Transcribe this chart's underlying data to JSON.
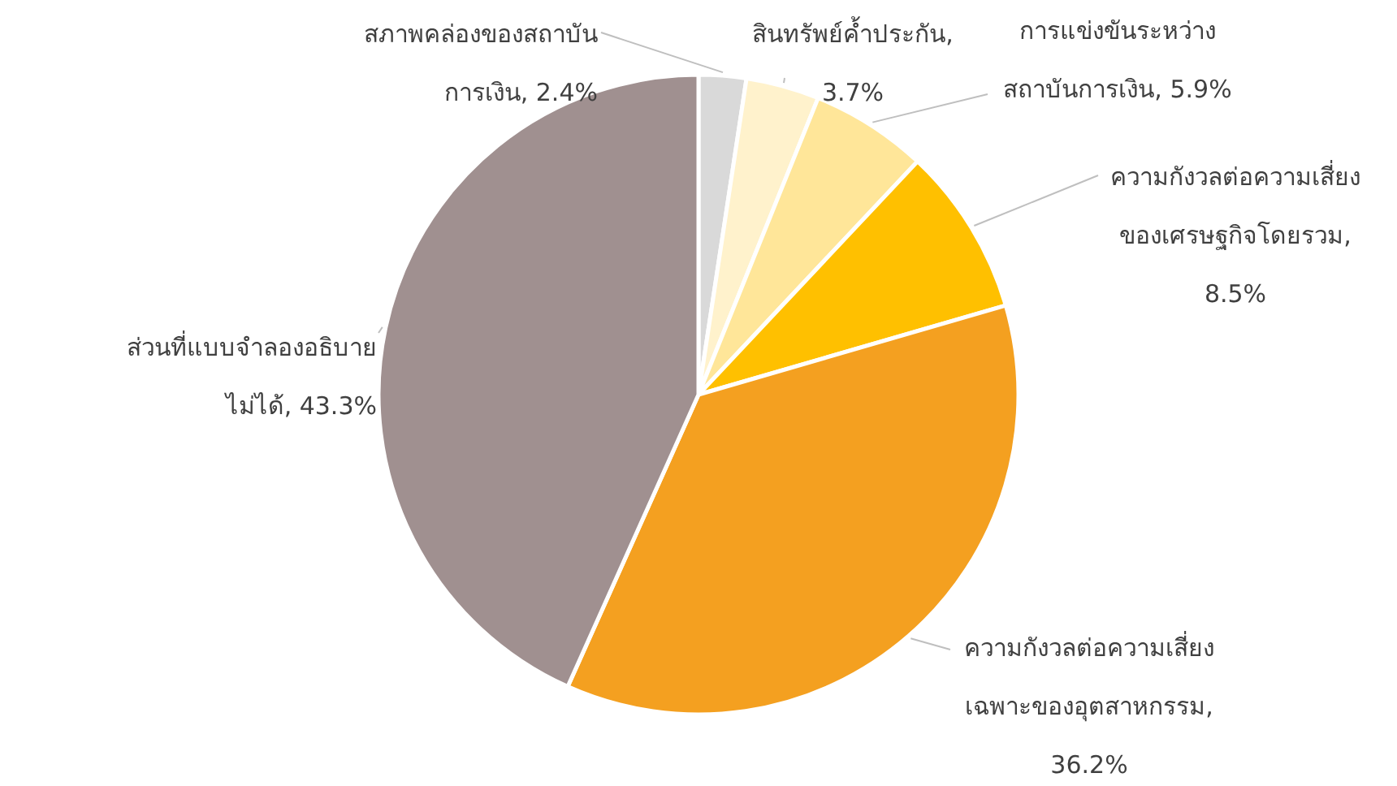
{
  "chart_data": {
    "type": "pie",
    "categories": [
      "สภาพคล่องของสถาบันการเงิน, 2.4%",
      "สินทรัพย์ค้ำประกัน, 3.7%",
      "การแข่งขันระหว่างสถาบันการเงิน, 5.9%",
      "ความกังวลต่อความเสี่ยงของเศรษฐกิจโดยรวม, 8.5%",
      "ความกังวลต่อความเสี่ยงเฉพาะของอุตสาหกรรม, 36.2%",
      "ส่วนที่แบบจำลองอธิบายไม่ได้, 43.3%"
    ],
    "values": [
      2.4,
      3.7,
      5.9,
      8.5,
      36.2,
      43.3
    ],
    "colors": [
      "#d9d9d9",
      "#fff2cc",
      "#ffe699",
      "#ffc000",
      "#f4a020",
      "#a09090"
    ]
  }
}
